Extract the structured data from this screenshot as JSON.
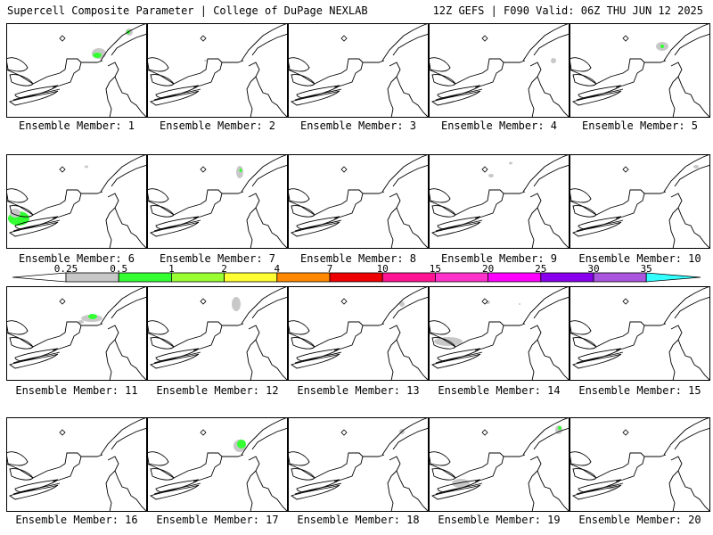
{
  "header": {
    "left": "Supercell Composite Parameter | College of DuPage NEXLAB",
    "right": "12Z GEFS | F090 Valid: 06Z THU JUN 12 2025"
  },
  "colors": {
    "bins": [
      "#c8c8c8",
      "#33ff33",
      "#99ff33",
      "#ffff33",
      "#ff8800",
      "#ee0000",
      "#ff1493",
      "#ff33cc",
      "#ff00ff",
      "#8800ee",
      "#aa55dd",
      "#33ffff"
    ],
    "light_green": "#33ff33",
    "gray": "#c8c8c8"
  },
  "colorbar": {
    "levels": [
      "0.25",
      "0.5",
      "1",
      "2",
      "4",
      "7",
      "10",
      "15",
      "20",
      "25",
      "30",
      "35"
    ]
  },
  "members": [
    {
      "label": "Ensemble Member: 1"
    },
    {
      "label": "Ensemble Member: 2"
    },
    {
      "label": "Ensemble Member: 3"
    },
    {
      "label": "Ensemble Member: 4"
    },
    {
      "label": "Ensemble Member: 5"
    },
    {
      "label": "Ensemble Member: 6"
    },
    {
      "label": "Ensemble Member: 7"
    },
    {
      "label": "Ensemble Member: 8"
    },
    {
      "label": "Ensemble Member: 9"
    },
    {
      "label": "Ensemble Member: 10"
    },
    {
      "label": "Ensemble Member: 11"
    },
    {
      "label": "Ensemble Member: 12"
    },
    {
      "label": "Ensemble Member: 13"
    },
    {
      "label": "Ensemble Member: 14"
    },
    {
      "label": "Ensemble Member: 15"
    },
    {
      "label": "Ensemble Member: 16"
    },
    {
      "label": "Ensemble Member: 17"
    },
    {
      "label": "Ensemble Member: 18"
    },
    {
      "label": "Ensemble Member: 19"
    },
    {
      "label": "Ensemble Member: 20"
    }
  ]
}
